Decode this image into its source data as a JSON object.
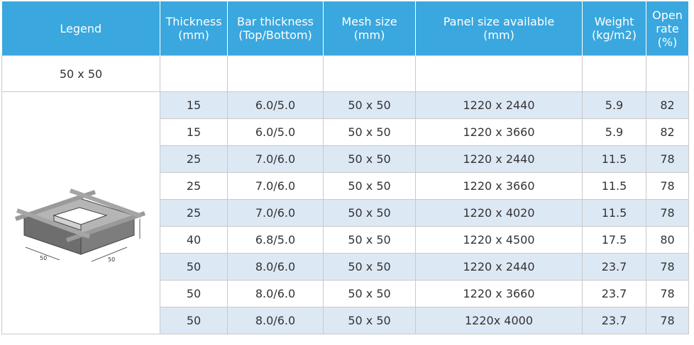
{
  "table": {
    "header": [
      [
        "Legend"
      ],
      [
        "Thickness",
        "(mm)"
      ],
      [
        "Bar thickness",
        "(Top/Bottom)"
      ],
      [
        "Mesh size",
        "(mm)"
      ],
      [
        "Panel size available",
        "(mm)"
      ],
      [
        "Weight",
        "(kg/m2)"
      ],
      [
        "Open",
        "rate",
        "(%)"
      ]
    ],
    "group_label": "50 x 50",
    "legend_dims": [
      "50",
      "50"
    ],
    "rows": [
      [
        "15",
        "6.0/5.0",
        "50 x 50",
        "1220 x 2440",
        "5.9",
        "82"
      ],
      [
        "15",
        "6.0/5.0",
        "50 x 50",
        "1220 x 3660",
        "5.9",
        "82"
      ],
      [
        "25",
        "7.0/6.0",
        "50 x 50",
        "1220 x 2440",
        "11.5",
        "78"
      ],
      [
        "25",
        "7.0/6.0",
        "50 x 50",
        "1220 x 3660",
        "11.5",
        "78"
      ],
      [
        "25",
        "7.0/6.0",
        "50 x 50",
        "1220 x 4020",
        "11.5",
        "78"
      ],
      [
        "40",
        "6.8/5.0",
        "50 x 50",
        "1220 x 4500",
        "17.5",
        "80"
      ],
      [
        "50",
        "8.0/6.0",
        "50 x 50",
        "1220 x 2440",
        "23.7",
        "78"
      ],
      [
        "50",
        "8.0/6.0",
        "50 x 50",
        "1220 x 3660",
        "23.7",
        "78"
      ],
      [
        "50",
        "8.0/6.0",
        "50 x 50",
        "1220x 4000",
        "23.7",
        "78"
      ]
    ]
  }
}
